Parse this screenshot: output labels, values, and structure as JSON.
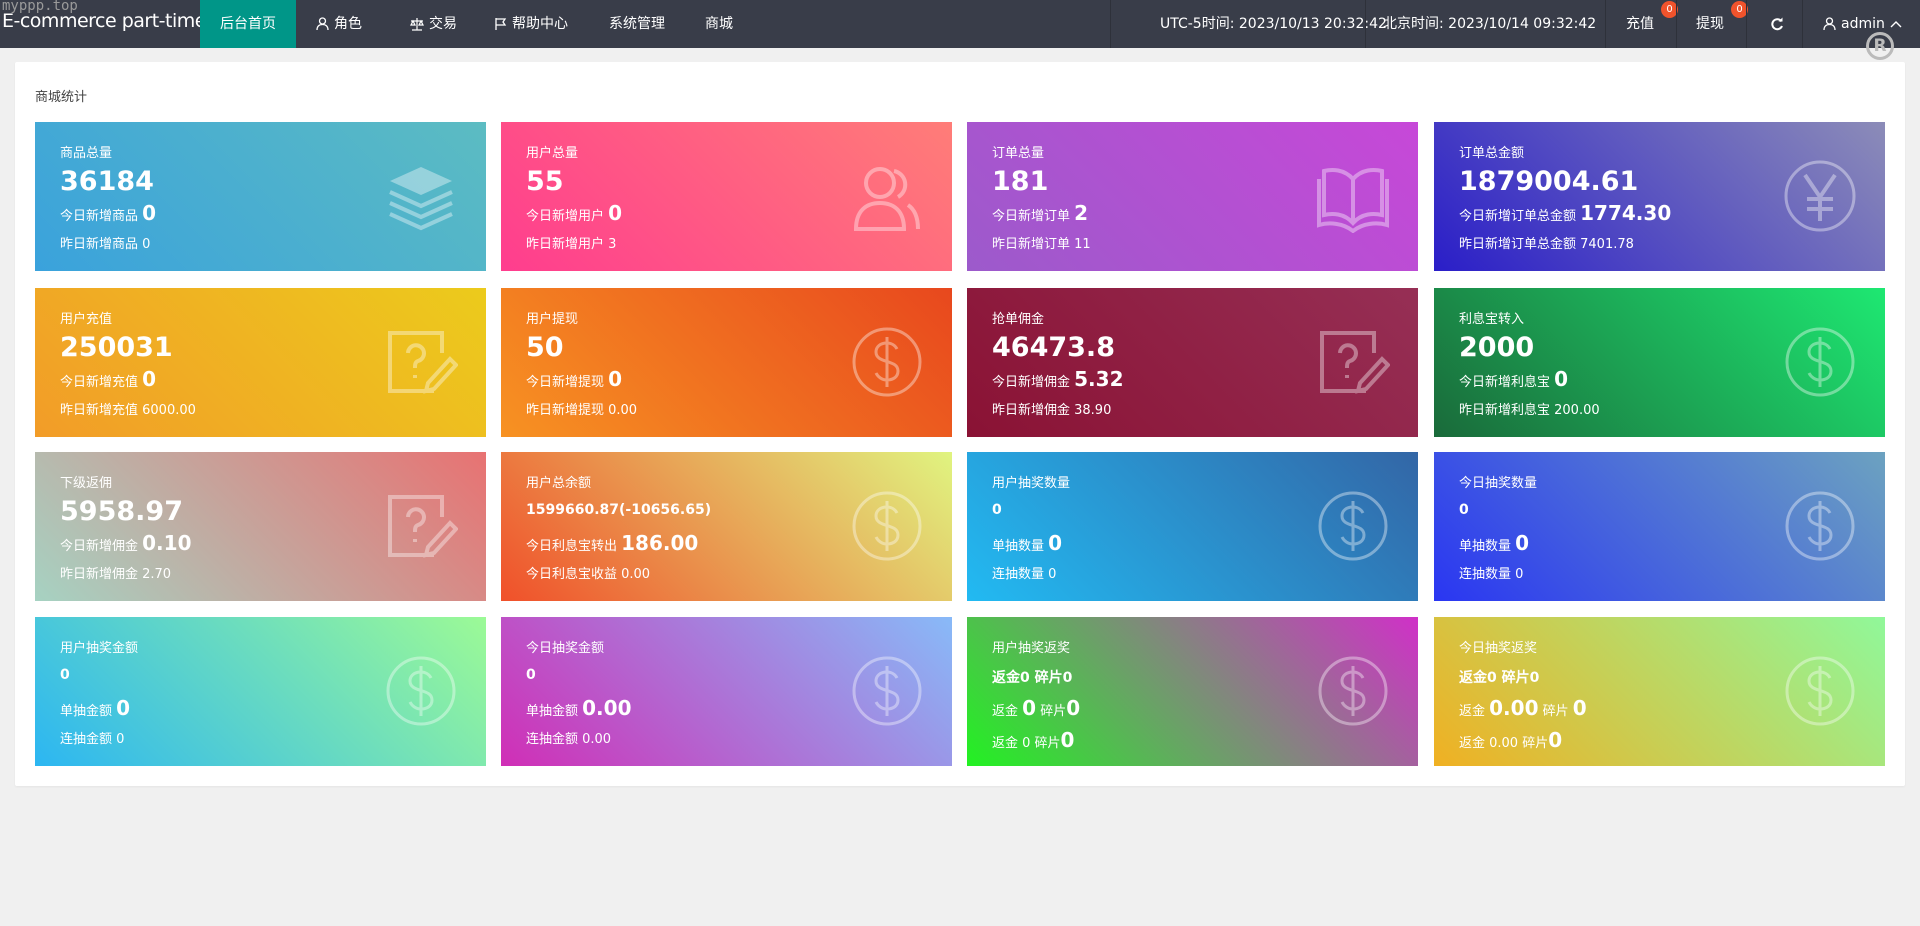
{
  "watermark": "myppp.top",
  "nav": {
    "brand": "E-commerce part-time",
    "items": [
      {
        "label": "后台首页",
        "icon": "",
        "active": true
      },
      {
        "label": "角色",
        "icon": "user-icon"
      },
      {
        "label": "交易",
        "icon": "scale-icon"
      },
      {
        "label": "帮助中心",
        "icon": "flag-icon"
      },
      {
        "label": "系统管理",
        "icon": ""
      },
      {
        "label": "商城",
        "icon": ""
      }
    ],
    "utc_time": "UTC-5时间: 2023/10/13 20:32:42",
    "beijing_time": "北京时间: 2023/10/14 09:32:42",
    "recharge": {
      "label": "充值",
      "badge": "0"
    },
    "withdraw": {
      "label": "提现",
      "badge": "0"
    },
    "refresh_icon": "refresh-icon",
    "user": "admin",
    "accent": "#009688",
    "badge_color": "#f0532c"
  },
  "panel": {
    "title": "商城统计"
  },
  "cards": [
    {
      "title": "商品总量",
      "main": "36184",
      "size": "big",
      "icon": "layers-icon",
      "grad": [
        "#3aa2dc",
        "#5cbcc2"
      ],
      "rows": [
        [
          {
            "t": "今日新增商品 "
          },
          {
            "t": "0",
            "b": true
          }
        ],
        [
          {
            "t": "昨日新增商品 0"
          }
        ]
      ]
    },
    {
      "title": "用户总量",
      "main": "55",
      "size": "big",
      "icon": "users-icon",
      "grad": [
        "#ff3d8e",
        "#ff7d78"
      ],
      "rows": [
        [
          {
            "t": "今日新增用户 "
          },
          {
            "t": "0",
            "b": true
          }
        ],
        [
          {
            "t": "昨日新增用户 3"
          }
        ]
      ]
    },
    {
      "title": "订单总量",
      "main": "181",
      "size": "big",
      "icon": "book-icon",
      "grad": [
        "#9c5acb",
        "#c748d8"
      ],
      "rows": [
        [
          {
            "t": "今日新增订单 "
          },
          {
            "t": "2",
            "b": true
          }
        ],
        [
          {
            "t": "昨日新增订单 11"
          }
        ]
      ]
    },
    {
      "title": "订单总金额",
      "main": "1879004.61",
      "size": "big",
      "icon": "yen-icon",
      "grad": [
        "#2a1ec8",
        "#8c8cb8"
      ],
      "rows": [
        [
          {
            "t": "今日新增订单总金额 "
          },
          {
            "t": "1774.30",
            "b": true
          }
        ],
        [
          {
            "t": "昨日新增订单总金额 7401.78"
          }
        ]
      ]
    },
    {
      "title": "用户充值",
      "main": "250031",
      "size": "big",
      "icon": "question-edit-icon",
      "grad": [
        "#f29c28",
        "#eccb1c"
      ],
      "rows": [
        [
          {
            "t": "今日新增充值 "
          },
          {
            "t": "0",
            "b": true
          }
        ],
        [
          {
            "t": "昨日新增充值 6000.00"
          }
        ]
      ]
    },
    {
      "title": "用户提现",
      "main": "50",
      "size": "big",
      "icon": "dollar-icon",
      "grad": [
        "#f79222",
        "#e8481e"
      ],
      "rows": [
        [
          {
            "t": "今日新增提现 "
          },
          {
            "t": "0",
            "b": true
          }
        ],
        [
          {
            "t": "昨日新增提现 0.00"
          }
        ]
      ]
    },
    {
      "title": "抢单佣金",
      "main": "46473.8",
      "size": "big",
      "icon": "question-edit-icon",
      "grad": [
        "#8a1234",
        "#962f55"
      ],
      "rows": [
        [
          {
            "t": "今日新增佣金 "
          },
          {
            "t": "5.32",
            "b": true
          }
        ],
        [
          {
            "t": "昨日新增佣金 38.90"
          }
        ]
      ]
    },
    {
      "title": "利息宝转入",
      "main": "2000",
      "size": "big",
      "icon": "dollar-icon",
      "grad": [
        "#1a6a3a",
        "#1ee872"
      ],
      "rows": [
        [
          {
            "t": "今日新增利息宝 "
          },
          {
            "t": "0",
            "b": true
          }
        ],
        [
          {
            "t": "昨日新增利息宝 200.00"
          }
        ]
      ]
    },
    {
      "title": "下级返佣",
      "main": "5958.97",
      "size": "big",
      "icon": "question-edit-icon",
      "grad": [
        "#a6d2c2",
        "#e87272"
      ],
      "rows": [
        [
          {
            "t": "今日新增佣金 "
          },
          {
            "t": "0.10",
            "b": true
          }
        ],
        [
          {
            "t": "昨日新增佣金 2.70"
          }
        ]
      ]
    },
    {
      "title": "用户总余额",
      "main": "1599660.87(-10656.65)",
      "size": "small",
      "icon": "dollar-icon",
      "grad": [
        "#f0502a",
        "#e0f480"
      ],
      "rows": [
        [
          {
            "t": "今日利息宝转出 "
          },
          {
            "t": "186.00",
            "b": true
          }
        ],
        [
          {
            "t": "今日利息宝收益 0.00"
          }
        ]
      ]
    },
    {
      "title": "用户抽奖数量",
      "main": "0",
      "size": "small",
      "icon": "dollar-icon",
      "grad": [
        "#22baf2",
        "#3366a6"
      ],
      "rows": [
        [
          {
            "t": "单抽数量 "
          },
          {
            "t": "0",
            "b": true
          }
        ],
        [
          {
            "t": "连抽数量 0"
          }
        ]
      ]
    },
    {
      "title": "今日抽奖数量",
      "main": "0",
      "size": "small",
      "icon": "dollar-icon",
      "grad": [
        "#2a36f2",
        "#6ca2c0"
      ],
      "rows": [
        [
          {
            "t": "单抽数量 "
          },
          {
            "t": "0",
            "b": true
          }
        ],
        [
          {
            "t": "连抽数量 0"
          }
        ]
      ]
    },
    {
      "title": "用户抽奖金额",
      "main": "0",
      "size": "small",
      "icon": "dollar-icon",
      "grad": [
        "#2cb6f2",
        "#9cfa96"
      ],
      "rows": [
        [
          {
            "t": "单抽金额 "
          },
          {
            "t": "0",
            "b": true
          }
        ],
        [
          {
            "t": "连抽金额 0"
          }
        ]
      ]
    },
    {
      "title": "今日抽奖金额",
      "main": "0",
      "size": "small",
      "icon": "dollar-icon",
      "grad": [
        "#d02eb6",
        "#88baf8"
      ],
      "rows": [
        [
          {
            "t": "单抽金额 "
          },
          {
            "t": "0.00",
            "b": true
          }
        ],
        [
          {
            "t": "连抽金额 0.00"
          }
        ]
      ]
    },
    {
      "title": "用户抽奖返奖",
      "main": "返金0 碎片0",
      "size": "small",
      "icon": "dollar-icon",
      "grad": [
        "#22f222",
        "#d030c8"
      ],
      "rows": [
        [
          {
            "t": "返金 "
          },
          {
            "t": "0",
            "b": true
          },
          {
            "t": " 碎片"
          },
          {
            "t": "0",
            "b": true
          }
        ],
        [
          {
            "t": "返金 0 碎片"
          },
          {
            "t": "0",
            "b": true
          }
        ]
      ]
    },
    {
      "title": "今日抽奖返奖",
      "main": "返金0 碎片0",
      "size": "small",
      "icon": "dollar-icon",
      "grad": [
        "#f0b022",
        "#90f89a"
      ],
      "rows": [
        [
          {
            "t": "返金 "
          },
          {
            "t": "0.00",
            "b": true
          },
          {
            "t": " 碎片 "
          },
          {
            "t": "0",
            "b": true
          }
        ],
        [
          {
            "t": "返金 0.00 碎片"
          },
          {
            "t": "0",
            "b": true
          }
        ]
      ]
    }
  ]
}
